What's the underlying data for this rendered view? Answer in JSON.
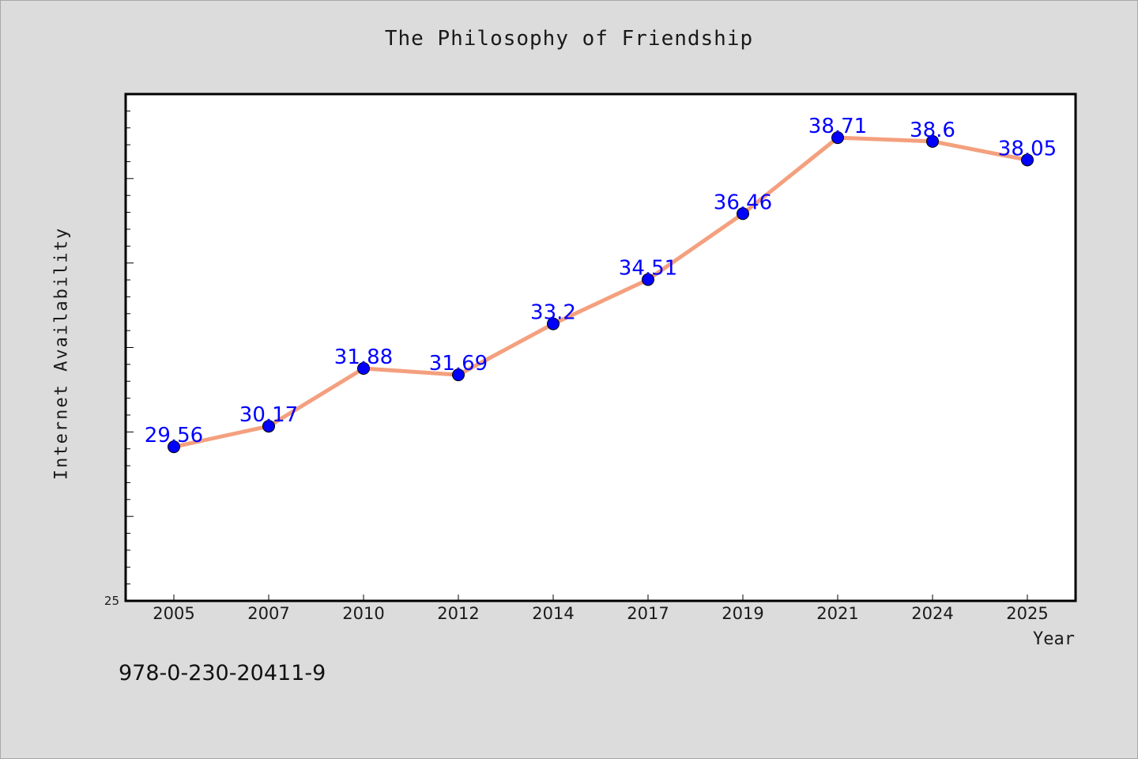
{
  "chart_data": {
    "type": "line",
    "title": "The Philosophy of Friendship",
    "xlabel": "Year",
    "ylabel": "Internet Availability",
    "categories": [
      "2005",
      "2007",
      "2010",
      "2012",
      "2014",
      "2017",
      "2019",
      "2021",
      "2024",
      "2025"
    ],
    "series": [
      {
        "values": [
          29.56,
          30.17,
          31.88,
          31.69,
          33.2,
          34.51,
          36.46,
          38.71,
          38.6,
          38.05
        ],
        "data_labels": [
          "29.56",
          "30.17",
          "31.88",
          "31.69",
          "33.2",
          "34.51",
          "36.46",
          "38.71",
          "38.6",
          "38.05"
        ],
        "line_color": "#f4a07e",
        "marker_color": "#0000ff"
      }
    ],
    "ylim": [
      25,
      40
    ],
    "y_tick_labels": [
      "25"
    ],
    "grid": false,
    "legend": "none"
  },
  "footer": {
    "isbn": "978-0-230-20411-9"
  },
  "colors": {
    "background": "#dcdcdc",
    "plot_background": "#ffffff",
    "axis": "#000000",
    "data_label": "#0000ff"
  }
}
